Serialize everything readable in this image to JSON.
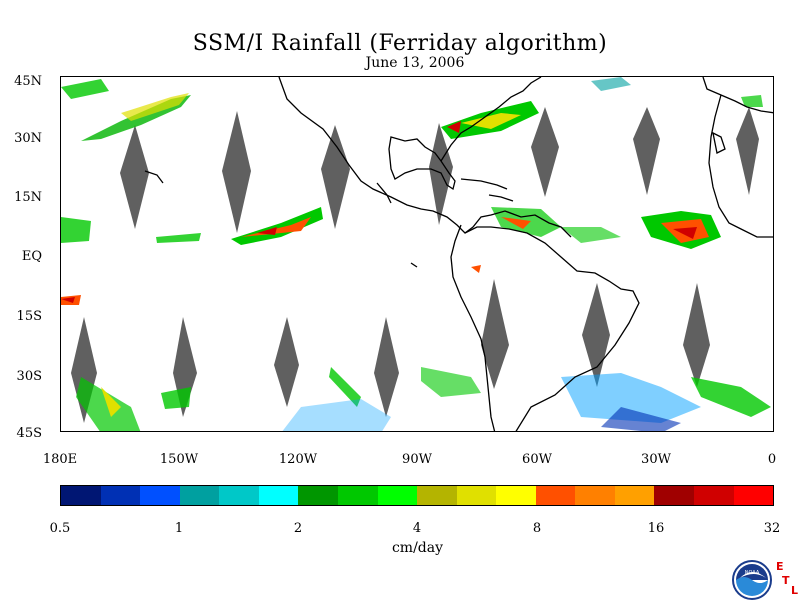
{
  "title": "SSM/I Rainfall (Ferriday algorithm)",
  "date": "June 13, 2006",
  "lat_labels": [
    "45N",
    "30N",
    "15N",
    "EQ",
    "15S",
    "30S",
    "45S"
  ],
  "lon_labels": [
    "180E",
    "150W",
    "120W",
    "90W",
    "60W",
    "30W",
    "0"
  ],
  "colorbar": {
    "unit": "cm/day",
    "tick_labels": [
      "0.5",
      "1",
      "2",
      "4",
      "8",
      "16",
      "32"
    ],
    "colors": [
      "#001673",
      "#0030b4",
      "#0050ff",
      "#00a0a0",
      "#00c8c8",
      "#00ffff",
      "#009600",
      "#00c800",
      "#00ff00",
      "#b4b400",
      "#e0e000",
      "#ffff00",
      "#ff5000",
      "#ff8000",
      "#ffa000",
      "#a00000",
      "#d00000",
      "#ff0000"
    ]
  },
  "logo": {
    "name": "NOAA",
    "letters": [
      "E",
      "T",
      "L"
    ]
  }
}
